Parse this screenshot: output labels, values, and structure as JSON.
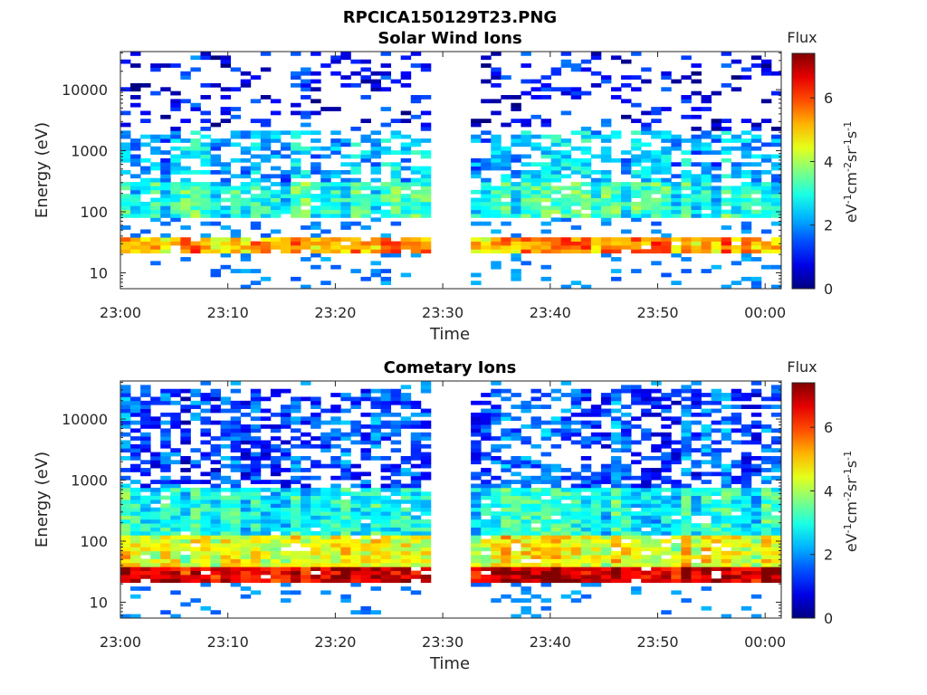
{
  "figure_title": "RPCICA150129T23.PNG",
  "chart_data": [
    {
      "type": "heatmap",
      "title": "Solar Wind Ions",
      "xlabel": "Time",
      "ylabel": "Energy (eV)",
      "x_ticks": [
        "23:00",
        "23:10",
        "23:20",
        "23:30",
        "23:40",
        "23:50",
        "00:00"
      ],
      "x_range_minutes": [
        0,
        61.5
      ],
      "y_ticks": [
        {
          "value": 10,
          "label": "10"
        },
        {
          "value": 100,
          "label": "100"
        },
        {
          "value": 1000,
          "label": "1000"
        },
        {
          "value": 10000,
          "label": "10000"
        }
      ],
      "y_scale": "log",
      "ylim": [
        5.5,
        42000
      ],
      "colorbar": {
        "title": "Flux",
        "label": "eV^-1 cm^-2 sr^-1 s^-1",
        "range": [
          0,
          7.4
        ],
        "ticks": [
          0,
          2,
          4,
          6
        ],
        "colormap": "jet"
      },
      "data_gap_minutes": [
        29.2,
        32.6
      ],
      "bands_approx": [
        {
          "energy_range_eV": [
            20,
            40
          ],
          "flux_level": 5.0,
          "description": "strong band"
        },
        {
          "energy_range_eV": [
            80,
            300
          ],
          "flux_level": 2.8,
          "description": "main band"
        },
        {
          "energy_range_eV": [
            300,
            2000
          ],
          "flux_level": 2.0,
          "description": "sporadic"
        },
        {
          "energy_range_eV": [
            2000,
            40000
          ],
          "flux_level": 0.6,
          "description": "sparse high-energy"
        }
      ]
    },
    {
      "type": "heatmap",
      "title": "Cometary Ions",
      "xlabel": "Time",
      "ylabel": "Energy (eV)",
      "x_ticks": [
        "23:00",
        "23:10",
        "23:20",
        "23:30",
        "23:40",
        "23:50",
        "00:00"
      ],
      "x_range_minutes": [
        0,
        61.5
      ],
      "y_ticks": [
        {
          "value": 10,
          "label": "10"
        },
        {
          "value": 100,
          "label": "100"
        },
        {
          "value": 1000,
          "label": "1000"
        },
        {
          "value": 10000,
          "label": "10000"
        }
      ],
      "y_scale": "log",
      "ylim": [
        5.5,
        42000
      ],
      "colorbar": {
        "title": "Flux",
        "label": "eV^-1 cm^-2 sr^-1 s^-1",
        "range": [
          0,
          7.4
        ],
        "ticks": [
          0,
          2,
          4,
          6
        ],
        "colormap": "jet"
      },
      "data_gap_minutes": [
        29.2,
        32.6
      ],
      "bands_approx": [
        {
          "energy_range_eV": [
            20,
            40
          ],
          "flux_level": 6.5,
          "description": "intense band"
        },
        {
          "energy_range_eV": [
            40,
            120
          ],
          "flux_level": 4.2,
          "description": "main band"
        },
        {
          "energy_range_eV": [
            120,
            800
          ],
          "flux_level": 2.6,
          "description": "fading upward"
        },
        {
          "energy_range_eV": [
            800,
            30000
          ],
          "flux_level": 1.2,
          "description": "sporadic high-energy"
        }
      ]
    }
  ]
}
